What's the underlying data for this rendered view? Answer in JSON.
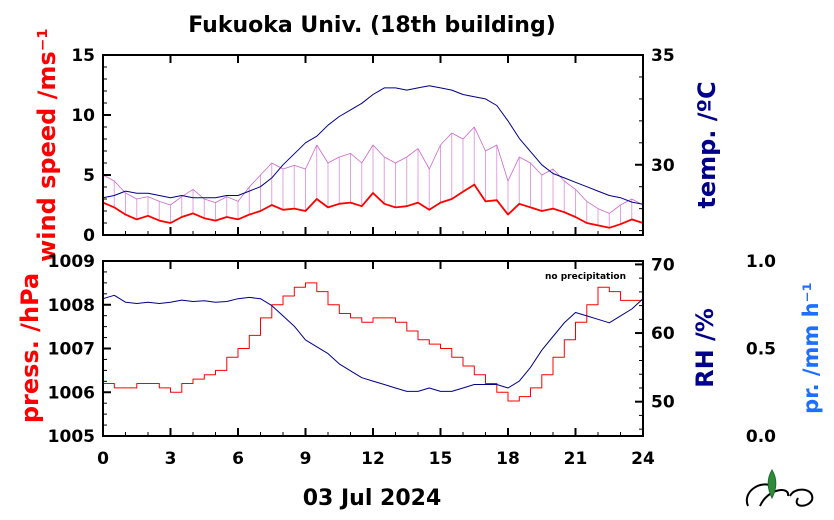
{
  "title": "Fukuoka Univ. (18th building)",
  "date_label": "03 Jul 2024",
  "colors": {
    "wind": "#ff0000",
    "wind_raw": "#cc66cc",
    "temp": "#00008b",
    "press": "#ff0000",
    "rh": "#00008b",
    "precip": "#1e6fff",
    "axis": "#000000"
  },
  "chart_data": [
    {
      "type": "line",
      "panel": "top",
      "xlabel": "",
      "xlim": [
        0,
        24
      ],
      "x_ticks": [
        "0",
        "3",
        "6",
        "9",
        "12",
        "15",
        "18",
        "21",
        "24"
      ],
      "left_axis": {
        "label": "wind speed /ms⁻¹",
        "ylim": [
          0,
          15
        ],
        "ticks": [
          "0",
          "5",
          "10",
          "15"
        ]
      },
      "right_axis": {
        "label": "temp. /ºC",
        "ylim": [
          26.8,
          35
        ],
        "ticks": [
          "30",
          "35"
        ]
      },
      "series": [
        {
          "axis": "left",
          "role": "wind-mean",
          "x": [
            0,
            0.5,
            1,
            1.5,
            2,
            2.5,
            3,
            3.5,
            4,
            4.5,
            5,
            5.5,
            6,
            6.5,
            7,
            7.5,
            8,
            8.5,
            9,
            9.5,
            10,
            10.5,
            11,
            11.5,
            12,
            12.5,
            13,
            13.5,
            14,
            14.5,
            15,
            15.5,
            16,
            16.5,
            17,
            17.5,
            18,
            18.5,
            19,
            19.5,
            20,
            20.5,
            21,
            21.5,
            22,
            22.5,
            23,
            23.5,
            24
          ],
          "values": [
            2.7,
            2.3,
            1.7,
            1.3,
            1.6,
            1.2,
            1.0,
            1.5,
            1.8,
            1.4,
            1.2,
            1.5,
            1.3,
            1.7,
            2.0,
            2.5,
            2.1,
            2.2,
            2.0,
            3.0,
            2.3,
            2.6,
            2.7,
            2.4,
            3.5,
            2.6,
            2.3,
            2.4,
            2.7,
            2.1,
            2.7,
            3.0,
            3.6,
            4.2,
            2.8,
            2.9,
            1.7,
            2.6,
            2.3,
            2.0,
            2.2,
            1.9,
            1.5,
            1.0,
            0.8,
            0.6,
            0.9,
            1.3,
            1.0
          ]
        },
        {
          "axis": "left",
          "role": "wind-max",
          "x": [
            0,
            0.5,
            1,
            1.5,
            2,
            2.5,
            3,
            3.5,
            4,
            4.5,
            5,
            5.5,
            6,
            6.5,
            7,
            7.5,
            8,
            8.5,
            9,
            9.5,
            10,
            10.5,
            11,
            11.5,
            12,
            12.5,
            13,
            13.5,
            14,
            14.5,
            15,
            15.5,
            16,
            16.5,
            17,
            17.5,
            18,
            18.5,
            19,
            19.5,
            20,
            20.5,
            21,
            21.5,
            22,
            22.5,
            23,
            23.5,
            24
          ],
          "values": [
            5.0,
            4.5,
            3.5,
            3.0,
            3.2,
            2.8,
            2.5,
            3.2,
            3.8,
            3.0,
            2.7,
            3.2,
            2.8,
            4.0,
            5.0,
            6.0,
            5.5,
            5.8,
            5.5,
            7.5,
            6.0,
            6.5,
            6.8,
            6.0,
            7.5,
            6.5,
            6.0,
            6.5,
            7.2,
            5.5,
            7.5,
            8.5,
            8.0,
            9.0,
            7.0,
            7.5,
            4.5,
            6.5,
            6.0,
            5.0,
            5.5,
            4.5,
            3.8,
            2.8,
            2.2,
            1.8,
            2.5,
            3.0,
            2.5
          ]
        },
        {
          "axis": "right",
          "role": "temperature",
          "x": [
            0,
            0.5,
            1,
            1.5,
            2,
            2.5,
            3,
            3.5,
            4,
            4.5,
            5,
            5.5,
            6,
            6.5,
            7,
            7.5,
            8,
            8.5,
            9,
            9.5,
            10,
            10.5,
            11,
            11.5,
            12,
            12.5,
            13,
            13.5,
            14,
            14.5,
            15,
            15.5,
            16,
            16.5,
            17,
            17.5,
            18,
            18.5,
            19,
            19.5,
            20,
            20.5,
            21,
            21.5,
            22,
            22.5,
            23,
            23.5,
            24
          ],
          "values": [
            28.5,
            28.6,
            28.8,
            28.7,
            28.7,
            28.6,
            28.5,
            28.6,
            28.5,
            28.5,
            28.5,
            28.6,
            28.6,
            28.8,
            29.0,
            29.4,
            30.0,
            30.5,
            31.0,
            31.3,
            31.8,
            32.2,
            32.5,
            32.8,
            33.2,
            33.5,
            33.5,
            33.4,
            33.5,
            33.6,
            33.5,
            33.4,
            33.2,
            33.1,
            33.0,
            32.7,
            32.0,
            31.2,
            30.6,
            30.0,
            29.6,
            29.4,
            29.2,
            29.0,
            28.8,
            28.6,
            28.5,
            28.3,
            28.2
          ]
        }
      ]
    },
    {
      "type": "line",
      "panel": "bottom",
      "xlabel": "03 Jul 2024",
      "xlim": [
        0,
        24
      ],
      "x_ticks": [
        "0",
        "3",
        "6",
        "9",
        "12",
        "15",
        "18",
        "21",
        "24"
      ],
      "left_axis": {
        "label": "press. /hPa",
        "ylim": [
          1005,
          1009
        ],
        "ticks": [
          "1005",
          "1006",
          "1007",
          "1008",
          "1009"
        ]
      },
      "right_axis": {
        "label": "RH /%",
        "ylim": [
          45,
          70.5
        ],
        "ticks": [
          "50",
          "60",
          "70"
        ]
      },
      "far_right_axis": {
        "label": "pr. /mm h⁻¹",
        "ylim": [
          0,
          1.0
        ],
        "ticks": [
          "0.0",
          "0.5",
          "1.0"
        ]
      },
      "annotation": "no precipitation",
      "series": [
        {
          "axis": "left",
          "role": "pressure",
          "x": [
            0,
            0.5,
            1,
            1.5,
            2,
            2.5,
            3,
            3.5,
            4,
            4.5,
            5,
            5.5,
            6,
            6.5,
            7,
            7.5,
            8,
            8.5,
            9,
            9.5,
            10,
            10.5,
            11,
            11.5,
            12,
            12.5,
            13,
            13.5,
            14,
            14.5,
            15,
            15.5,
            16,
            16.5,
            17,
            17.5,
            18,
            18.5,
            19,
            19.5,
            20,
            20.5,
            21,
            21.5,
            22,
            22.5,
            23,
            23.5,
            24
          ],
          "values": [
            1006.2,
            1006.1,
            1006.1,
            1006.2,
            1006.2,
            1006.1,
            1006.0,
            1006.2,
            1006.3,
            1006.4,
            1006.5,
            1006.8,
            1007.0,
            1007.3,
            1007.7,
            1008.0,
            1008.2,
            1008.4,
            1008.5,
            1008.3,
            1008.0,
            1007.8,
            1007.7,
            1007.6,
            1007.7,
            1007.7,
            1007.6,
            1007.4,
            1007.2,
            1007.1,
            1007.0,
            1006.8,
            1006.6,
            1006.4,
            1006.2,
            1006.0,
            1005.8,
            1005.9,
            1006.1,
            1006.4,
            1006.8,
            1007.2,
            1007.6,
            1008.0,
            1008.4,
            1008.3,
            1008.1,
            1008.1,
            1008.0
          ]
        },
        {
          "axis": "right",
          "role": "relative-humidity",
          "x": [
            0,
            0.5,
            1,
            1.5,
            2,
            2.5,
            3,
            3.5,
            4,
            4.5,
            5,
            5.5,
            6,
            6.5,
            7,
            7.5,
            8,
            8.5,
            9,
            9.5,
            10,
            10.5,
            11,
            11.5,
            12,
            12.5,
            13,
            13.5,
            14,
            14.5,
            15,
            15.5,
            16,
            16.5,
            17,
            17.5,
            18,
            18.5,
            19,
            19.5,
            20,
            20.5,
            21,
            21.5,
            22,
            22.5,
            23,
            23.5,
            24
          ],
          "values": [
            65.0,
            65.5,
            64.5,
            64.3,
            64.5,
            64.3,
            64.5,
            64.8,
            64.6,
            64.7,
            64.5,
            64.6,
            65.0,
            65.2,
            65.0,
            64.0,
            62.5,
            61.0,
            59.0,
            58.0,
            57.0,
            55.5,
            54.5,
            53.5,
            53.0,
            52.5,
            52.0,
            51.5,
            51.5,
            52.0,
            51.5,
            51.5,
            52.0,
            52.5,
            52.5,
            52.5,
            52.0,
            53.0,
            55.0,
            57.5,
            59.5,
            61.5,
            63.0,
            62.5,
            62.0,
            61.5,
            62.5,
            63.5,
            65.0
          ]
        }
      ]
    }
  ]
}
